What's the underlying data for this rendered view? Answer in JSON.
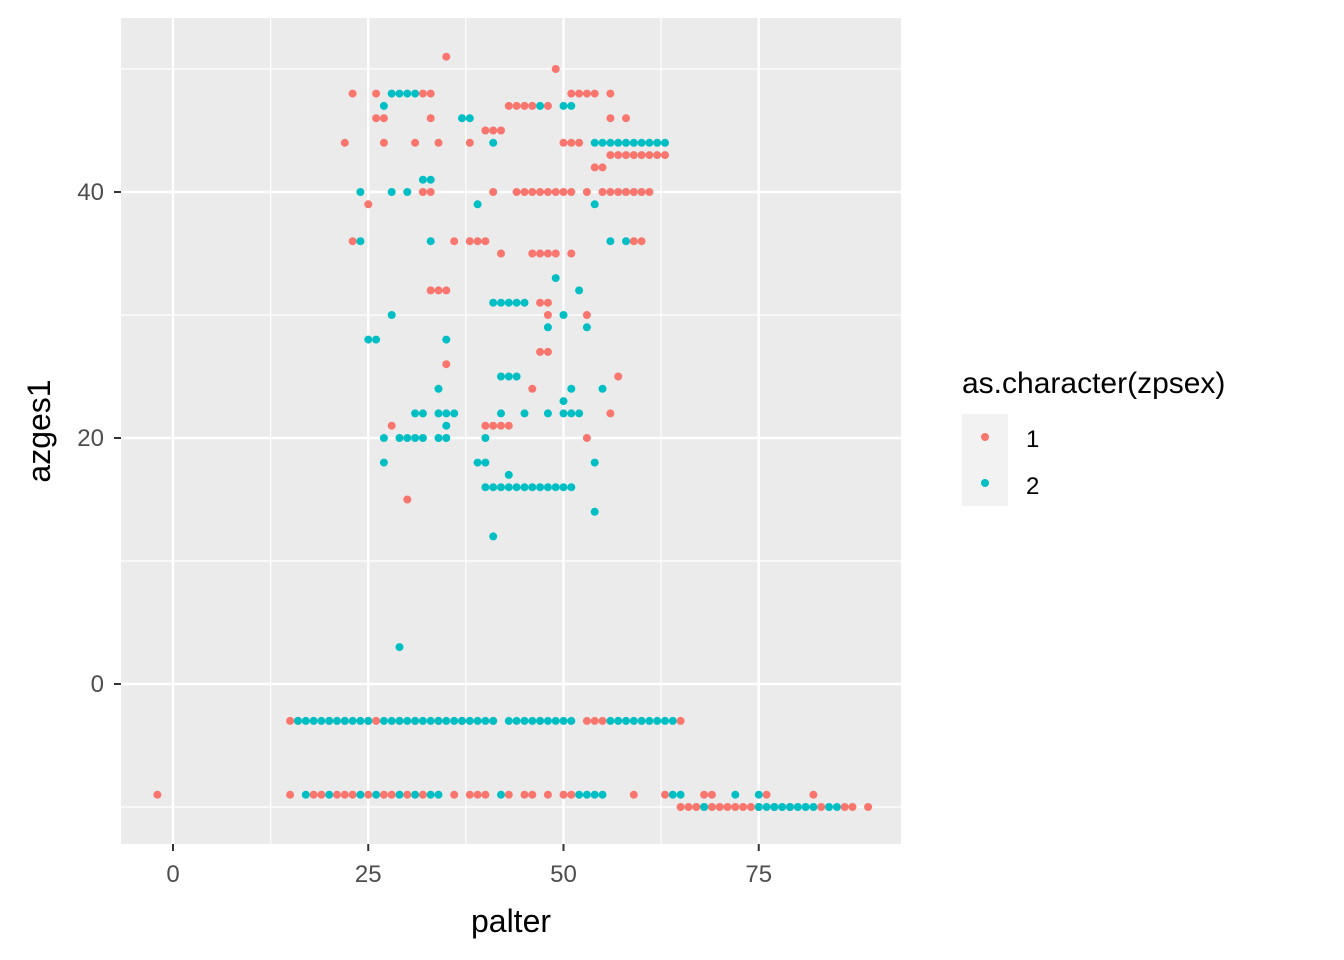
{
  "chart_data": {
    "type": "scatter",
    "xlabel": "palter",
    "ylabel": "azges1",
    "xlim": [
      -4.5,
      93
    ],
    "ylim": [
      -13,
      52.5
    ],
    "x_ticks": [
      0,
      25,
      50,
      75
    ],
    "y_ticks": [
      0,
      20,
      40
    ],
    "grid": true,
    "legend": {
      "title": "as.character(zpsex)",
      "position": "right"
    },
    "series": [
      {
        "name": "1",
        "color": "#F8766D",
        "points": [
          [
            -2,
            -9
          ],
          [
            15,
            -3
          ],
          [
            15,
            -9
          ],
          [
            16,
            -3
          ],
          [
            18,
            -9
          ],
          [
            19,
            -9
          ],
          [
            20,
            -3
          ],
          [
            21,
            -9
          ],
          [
            22,
            -3
          ],
          [
            22,
            -9
          ],
          [
            22,
            44
          ],
          [
            23,
            48
          ],
          [
            23,
            36
          ],
          [
            23,
            -9
          ],
          [
            25,
            -3
          ],
          [
            25,
            39
          ],
          [
            25,
            -9
          ],
          [
            26,
            48
          ],
          [
            26,
            46
          ],
          [
            26,
            -3
          ],
          [
            27,
            46
          ],
          [
            27,
            44
          ],
          [
            27,
            -9
          ],
          [
            28,
            21
          ],
          [
            28,
            -9
          ],
          [
            29,
            -3
          ],
          [
            30,
            15
          ],
          [
            30,
            -9
          ],
          [
            31,
            44
          ],
          [
            31,
            -3
          ],
          [
            32,
            48
          ],
          [
            32,
            40
          ],
          [
            32,
            -9
          ],
          [
            33,
            48
          ],
          [
            33,
            46
          ],
          [
            33,
            40
          ],
          [
            33,
            32
          ],
          [
            34,
            44
          ],
          [
            34,
            32
          ],
          [
            34,
            -3
          ],
          [
            35,
            51
          ],
          [
            35,
            32
          ],
          [
            35,
            26
          ],
          [
            36,
            36
          ],
          [
            36,
            -9
          ],
          [
            37,
            -3
          ],
          [
            38,
            44
          ],
          [
            38,
            36
          ],
          [
            38,
            -9
          ],
          [
            39,
            36
          ],
          [
            39,
            -9
          ],
          [
            40,
            45
          ],
          [
            40,
            36
          ],
          [
            40,
            21
          ],
          [
            40,
            -9
          ],
          [
            41,
            45
          ],
          [
            41,
            40
          ],
          [
            41,
            21
          ],
          [
            41,
            -3
          ],
          [
            42,
            45
          ],
          [
            42,
            35
          ],
          [
            42,
            21
          ],
          [
            43,
            47
          ],
          [
            43,
            21
          ],
          [
            43,
            -9
          ],
          [
            44,
            47
          ],
          [
            44,
            40
          ],
          [
            45,
            47
          ],
          [
            45,
            40
          ],
          [
            45,
            -9
          ],
          [
            46,
            47
          ],
          [
            46,
            40
          ],
          [
            46,
            35
          ],
          [
            46,
            24
          ],
          [
            46,
            -9
          ],
          [
            47,
            40
          ],
          [
            47,
            35
          ],
          [
            47,
            31
          ],
          [
            47,
            27
          ],
          [
            47,
            -3
          ],
          [
            48,
            47
          ],
          [
            48,
            40
          ],
          [
            48,
            35
          ],
          [
            48,
            31
          ],
          [
            48,
            30
          ],
          [
            48,
            27
          ],
          [
            48,
            -9
          ],
          [
            49,
            50
          ],
          [
            49,
            40
          ],
          [
            49,
            35
          ],
          [
            50,
            44
          ],
          [
            50,
            40
          ],
          [
            50,
            -9
          ],
          [
            51,
            48
          ],
          [
            51,
            44
          ],
          [
            51,
            40
          ],
          [
            51,
            35
          ],
          [
            51,
            -9
          ],
          [
            52,
            48
          ],
          [
            52,
            44
          ],
          [
            53,
            48
          ],
          [
            53,
            40
          ],
          [
            53,
            30
          ],
          [
            53,
            20
          ],
          [
            53,
            -3
          ],
          [
            54,
            48
          ],
          [
            54,
            42
          ],
          [
            54,
            -3
          ],
          [
            55,
            42
          ],
          [
            55,
            40
          ],
          [
            55,
            -3
          ],
          [
            56,
            48
          ],
          [
            56,
            46
          ],
          [
            56,
            43
          ],
          [
            56,
            40
          ],
          [
            56,
            22
          ],
          [
            57,
            43
          ],
          [
            57,
            40
          ],
          [
            57,
            25
          ],
          [
            58,
            46
          ],
          [
            58,
            43
          ],
          [
            58,
            40
          ],
          [
            59,
            43
          ],
          [
            59,
            40
          ],
          [
            59,
            36
          ],
          [
            59,
            -9
          ],
          [
            60,
            43
          ],
          [
            60,
            40
          ],
          [
            60,
            36
          ],
          [
            61,
            43
          ],
          [
            61,
            40
          ],
          [
            62,
            43
          ],
          [
            63,
            43
          ],
          [
            63,
            -9
          ],
          [
            65,
            -3
          ],
          [
            65,
            -10
          ],
          [
            66,
            -10
          ],
          [
            67,
            -10
          ],
          [
            68,
            -9
          ],
          [
            68,
            -10
          ],
          [
            69,
            -9
          ],
          [
            69,
            -10
          ],
          [
            70,
            -10
          ],
          [
            71,
            -10
          ],
          [
            72,
            -10
          ],
          [
            73,
            -10
          ],
          [
            74,
            -10
          ],
          [
            75,
            -10
          ],
          [
            76,
            -9
          ],
          [
            77,
            -10
          ],
          [
            79,
            -10
          ],
          [
            82,
            -9
          ],
          [
            83,
            -10
          ],
          [
            86,
            -10
          ],
          [
            87,
            -10
          ],
          [
            89,
            -10
          ]
        ]
      },
      {
        "name": "2",
        "color": "#00BFC4",
        "points": [
          [
            16,
            -3
          ],
          [
            17,
            -3
          ],
          [
            17,
            -9
          ],
          [
            18,
            -3
          ],
          [
            19,
            -3
          ],
          [
            20,
            -3
          ],
          [
            20,
            -9
          ],
          [
            21,
            -3
          ],
          [
            22,
            -3
          ],
          [
            23,
            -3
          ],
          [
            24,
            -3
          ],
          [
            24,
            40
          ],
          [
            24,
            36
          ],
          [
            24,
            -9
          ],
          [
            25,
            28
          ],
          [
            25,
            -3
          ],
          [
            26,
            28
          ],
          [
            26,
            -9
          ],
          [
            27,
            47
          ],
          [
            27,
            20
          ],
          [
            27,
            18
          ],
          [
            27,
            -3
          ],
          [
            28,
            48
          ],
          [
            28,
            40
          ],
          [
            28,
            30
          ],
          [
            28,
            -3
          ],
          [
            29,
            48
          ],
          [
            29,
            20
          ],
          [
            29,
            3
          ],
          [
            29,
            -3
          ],
          [
            29,
            -9
          ],
          [
            30,
            48
          ],
          [
            30,
            40
          ],
          [
            30,
            20
          ],
          [
            30,
            -3
          ],
          [
            31,
            48
          ],
          [
            31,
            22
          ],
          [
            31,
            20
          ],
          [
            31,
            -3
          ],
          [
            31,
            -9
          ],
          [
            32,
            41
          ],
          [
            32,
            22
          ],
          [
            32,
            20
          ],
          [
            32,
            -3
          ],
          [
            33,
            41
          ],
          [
            33,
            36
          ],
          [
            33,
            -3
          ],
          [
            33,
            -9
          ],
          [
            34,
            24
          ],
          [
            34,
            22
          ],
          [
            34,
            20
          ],
          [
            34,
            -3
          ],
          [
            34,
            -9
          ],
          [
            35,
            28
          ],
          [
            35,
            22
          ],
          [
            35,
            21
          ],
          [
            35,
            20
          ],
          [
            35,
            -3
          ],
          [
            36,
            22
          ],
          [
            36,
            -3
          ],
          [
            37,
            46
          ],
          [
            37,
            -3
          ],
          [
            38,
            46
          ],
          [
            38,
            -3
          ],
          [
            39,
            39
          ],
          [
            39,
            18
          ],
          [
            39,
            -3
          ],
          [
            40,
            20
          ],
          [
            40,
            18
          ],
          [
            40,
            16
          ],
          [
            40,
            -3
          ],
          [
            41,
            44
          ],
          [
            41,
            31
          ],
          [
            41,
            16
          ],
          [
            41,
            12
          ],
          [
            41,
            -3
          ],
          [
            42,
            31
          ],
          [
            42,
            25
          ],
          [
            42,
            22
          ],
          [
            42,
            16
          ],
          [
            42,
            -9
          ],
          [
            43,
            31
          ],
          [
            43,
            25
          ],
          [
            43,
            17
          ],
          [
            43,
            16
          ],
          [
            43,
            -3
          ],
          [
            44,
            31
          ],
          [
            44,
            25
          ],
          [
            44,
            16
          ],
          [
            44,
            -3
          ],
          [
            45,
            31
          ],
          [
            45,
            22
          ],
          [
            45,
            16
          ],
          [
            45,
            -3
          ],
          [
            46,
            16
          ],
          [
            46,
            -3
          ],
          [
            47,
            47
          ],
          [
            47,
            16
          ],
          [
            47,
            -3
          ],
          [
            48,
            29
          ],
          [
            48,
            22
          ],
          [
            48,
            16
          ],
          [
            48,
            -3
          ],
          [
            49,
            33
          ],
          [
            49,
            16
          ],
          [
            49,
            -3
          ],
          [
            50,
            47
          ],
          [
            50,
            30
          ],
          [
            50,
            23
          ],
          [
            50,
            22
          ],
          [
            50,
            16
          ],
          [
            50,
            -3
          ],
          [
            51,
            47
          ],
          [
            51,
            24
          ],
          [
            51,
            22
          ],
          [
            51,
            16
          ],
          [
            51,
            -3
          ],
          [
            52,
            32
          ],
          [
            52,
            22
          ],
          [
            52,
            -9
          ],
          [
            53,
            29
          ],
          [
            53,
            -9
          ],
          [
            54,
            44
          ],
          [
            54,
            39
          ],
          [
            54,
            18
          ],
          [
            54,
            14
          ],
          [
            54,
            -9
          ],
          [
            55,
            44
          ],
          [
            55,
            24
          ],
          [
            55,
            -9
          ],
          [
            56,
            44
          ],
          [
            56,
            36
          ],
          [
            56,
            -3
          ],
          [
            57,
            44
          ],
          [
            57,
            -3
          ],
          [
            58,
            44
          ],
          [
            58,
            36
          ],
          [
            58,
            -3
          ],
          [
            59,
            44
          ],
          [
            59,
            -3
          ],
          [
            60,
            44
          ],
          [
            60,
            -3
          ],
          [
            61,
            44
          ],
          [
            61,
            -3
          ],
          [
            62,
            44
          ],
          [
            62,
            -3
          ],
          [
            63,
            44
          ],
          [
            63,
            -3
          ],
          [
            64,
            -3
          ],
          [
            64,
            -9
          ],
          [
            65,
            -9
          ],
          [
            68,
            -10
          ],
          [
            72,
            -9
          ],
          [
            75,
            -9
          ],
          [
            75,
            -10
          ],
          [
            76,
            -10
          ],
          [
            77,
            -10
          ],
          [
            78,
            -10
          ],
          [
            79,
            -10
          ],
          [
            80,
            -10
          ],
          [
            81,
            -10
          ],
          [
            82,
            -10
          ],
          [
            84,
            -10
          ],
          [
            85,
            -10
          ]
        ]
      }
    ]
  }
}
